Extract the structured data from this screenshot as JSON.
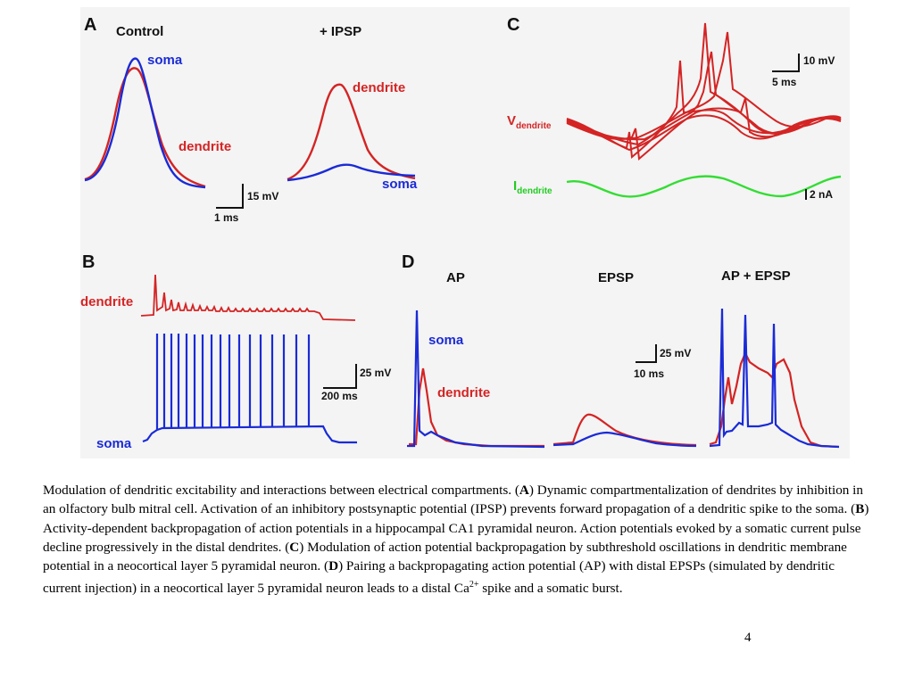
{
  "figure": {
    "panelA": {
      "letter": "A",
      "heading_control": "Control",
      "heading_ipsp": "+ IPSP",
      "label_soma": "soma",
      "label_dendrite": "dendrite",
      "label_dendrite_ipsp": "dendrite",
      "label_soma_ipsp": "soma",
      "scale_v": "15 mV",
      "scale_t": "1 ms"
    },
    "panelB": {
      "letter": "B",
      "label_dendrite": "dendrite",
      "label_soma": "soma",
      "scale_v": "25 mV",
      "scale_t": "200 ms"
    },
    "panelC": {
      "letter": "C",
      "v_label_main": "V",
      "v_label_sub": "dendrite",
      "i_label_main": "I",
      "i_label_sub": "dendrite",
      "scale_v": "10 mV",
      "scale_t": "5 ms",
      "scale_i": "2 nA"
    },
    "panelD": {
      "letter": "D",
      "heading_ap": "AP",
      "heading_epsp": "EPSP",
      "heading_ap_epsp": "AP + EPSP",
      "label_soma": "soma",
      "label_dendrite": "dendrite",
      "scale_v": "25 mV",
      "scale_t": "10 ms"
    },
    "colors": {
      "soma": "#1a2bd6",
      "dendrite": "#d42424",
      "current": "#33dd33"
    }
  },
  "caption": {
    "p1": "Modulation of dendritic excitability and interactions between electrical compartments. (",
    "bA": "A",
    "p2": ") Dynamic compartmentalization of dendrites by inhibition in an olfactory bulb mitral cell. Activation of an inhibitory postsynaptic potential (IPSP) prevents forward propagation of a dendritic spike to the soma. (",
    "bB": "B",
    "p3": ") Activity-dependent backpropagation of action potentials in a hippocampal CA1 pyramidal neuron. Action potentials evoked by a somatic current pulse decline progressively in the distal dendrites. (",
    "bC": "C",
    "p4": ") Modulation of action potential backpropagation by subthreshold oscillations in dendritic membrane potential in a neocortical layer 5 pyramidal neuron. (",
    "bD": "D",
    "p5": ") Pairing a backpropagating action potential (AP) with distal EPSPs (simulated by dendritic current injection) in a neocortical layer 5 pyramidal neuron leads to a distal Ca",
    "sup": "2+",
    "p6": " spike and a somatic burst."
  },
  "page_number": "4"
}
